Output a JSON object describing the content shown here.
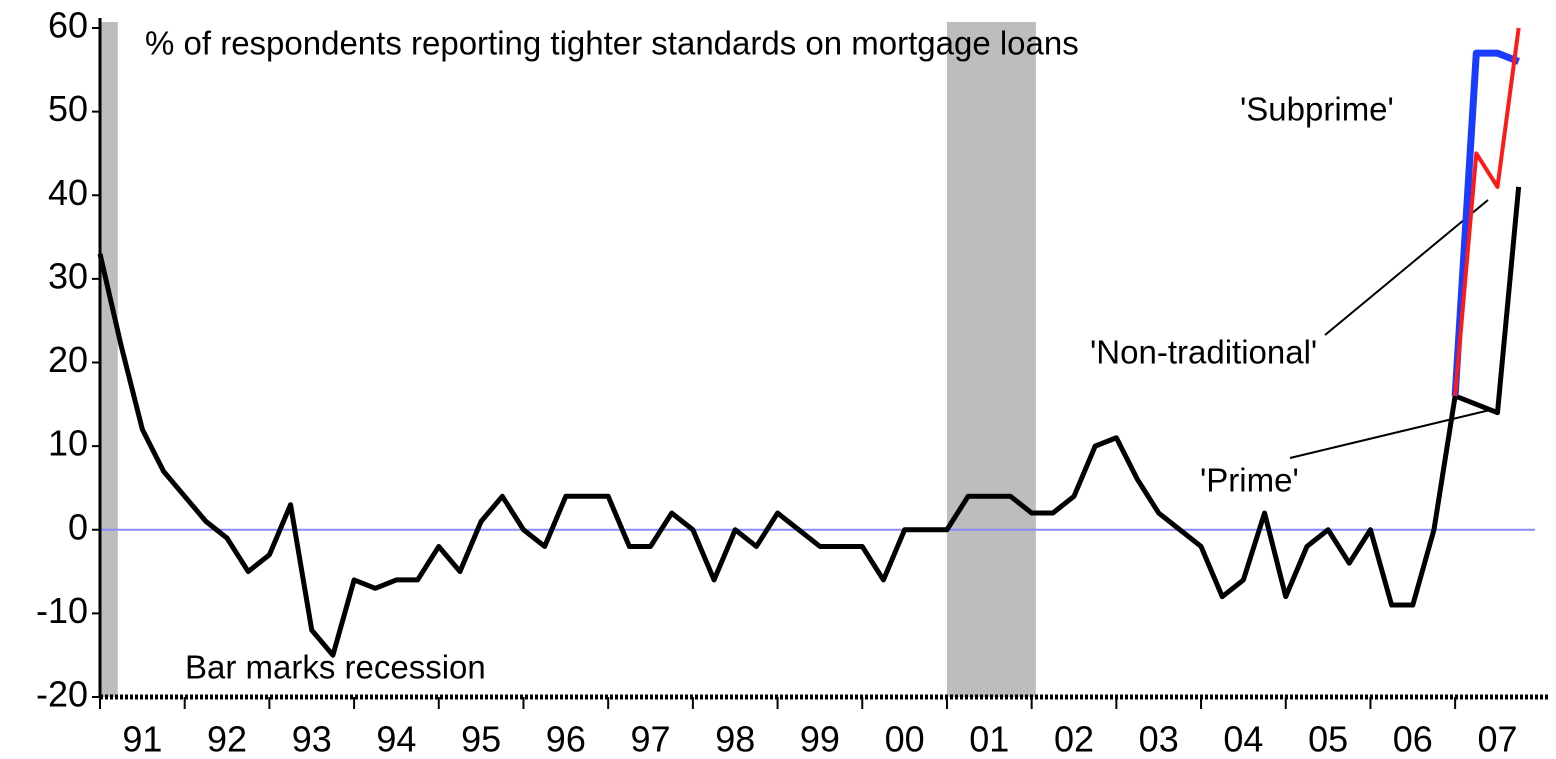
{
  "chart_data": {
    "type": "line",
    "title": "% of respondents reporting tighter standards on mortgage loans",
    "annotations": [
      "'Subprime'",
      "'Non-traditional'",
      "'Prime'",
      "Bar marks recession"
    ],
    "xlim": [
      1991,
      2008.12
    ],
    "xticks": [
      {
        "value": 1991,
        "label": "91"
      },
      {
        "value": 1992,
        "label": "92"
      },
      {
        "value": 1993,
        "label": "93"
      },
      {
        "value": 1994,
        "label": "94"
      },
      {
        "value": 1995,
        "label": "95"
      },
      {
        "value": 1996,
        "label": "96"
      },
      {
        "value": 1997,
        "label": "97"
      },
      {
        "value": 1998,
        "label": "98"
      },
      {
        "value": 1999,
        "label": "99"
      },
      {
        "value": 2000,
        "label": "00"
      },
      {
        "value": 2001,
        "label": "01"
      },
      {
        "value": 2002,
        "label": "02"
      },
      {
        "value": 2003,
        "label": "03"
      },
      {
        "value": 2004,
        "label": "04"
      },
      {
        "value": 2005,
        "label": "05"
      },
      {
        "value": 2006,
        "label": "06"
      },
      {
        "value": 2007,
        "label": "07"
      }
    ],
    "ylim": [
      -20,
      60
    ],
    "yticks": [
      -20,
      -10,
      0,
      10,
      20,
      30,
      40,
      50,
      60
    ],
    "hline": 0,
    "recessions": [
      [
        1991.0,
        1991.21
      ],
      [
        2001.0,
        2002.05
      ]
    ],
    "series": [
      {
        "name": "'Prime'",
        "color": "#000000",
        "x": [
          1991.0,
          1991.25,
          1991.5,
          1991.75,
          1992.0,
          1992.25,
          1992.5,
          1992.75,
          1993.0,
          1993.25,
          1993.5,
          1993.75,
          1994.0,
          1994.25,
          1994.5,
          1994.75,
          1995.0,
          1995.25,
          1995.5,
          1995.75,
          1996.0,
          1996.25,
          1996.5,
          1996.75,
          1997.0,
          1997.25,
          1997.5,
          1997.75,
          1998.0,
          1998.25,
          1998.5,
          1998.75,
          1999.0,
          1999.25,
          1999.5,
          1999.75,
          2000.0,
          2000.25,
          2000.5,
          2000.75,
          2001.0,
          2001.25,
          2001.5,
          2001.75,
          2002.0,
          2002.25,
          2002.5,
          2002.75,
          2003.0,
          2003.25,
          2003.5,
          2003.75,
          2004.0,
          2004.25,
          2004.5,
          2004.75,
          2005.0,
          2005.25,
          2005.5,
          2005.75,
          2006.0,
          2006.25,
          2006.5,
          2006.75,
          2007.0,
          2007.25,
          2007.5,
          2007.75
        ],
        "values": [
          33,
          22,
          12,
          7,
          4,
          1,
          -1,
          -5,
          -3,
          3,
          -12,
          -15,
          -6,
          -7,
          -6,
          -6,
          -2,
          -5,
          1,
          4,
          0,
          -2,
          4,
          4,
          4,
          -2,
          -2,
          2,
          0,
          -6,
          0,
          -2,
          2,
          0,
          -2,
          -2,
          -2,
          -6,
          0,
          0,
          0,
          4,
          4,
          4,
          2,
          2,
          4,
          10,
          11,
          6,
          2,
          0,
          -2,
          -8,
          -6,
          2,
          -8,
          -2,
          0,
          -4,
          0,
          -9,
          -9,
          0,
          16,
          15,
          14,
          41
        ]
      },
      {
        "name": "'Subprime'",
        "color": "#1a3cff",
        "x": [
          2007.0,
          2007.25,
          2007.5,
          2007.75
        ],
        "values": [
          16,
          57,
          57,
          56
        ]
      },
      {
        "name": "'Non-traditional'",
        "color": "#ff1a1a",
        "x": [
          2007.0,
          2007.25,
          2007.5,
          2007.75
        ],
        "values": [
          16,
          45,
          41,
          60
        ]
      }
    ]
  }
}
